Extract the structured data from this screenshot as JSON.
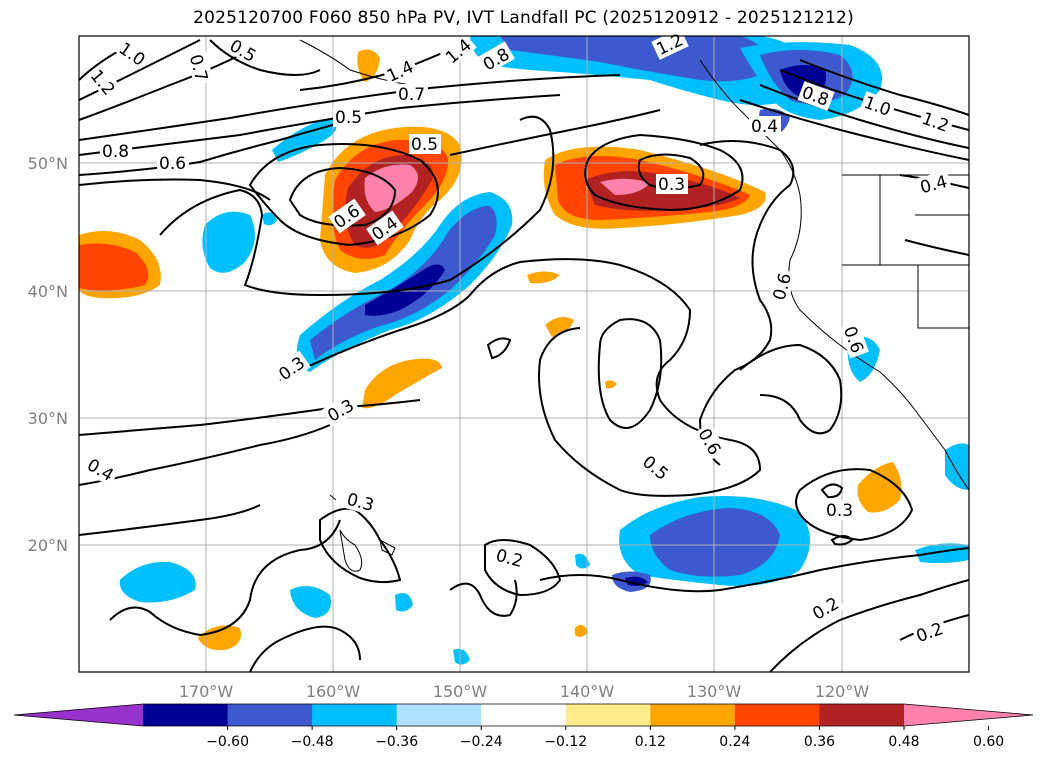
{
  "title": "2025120700 F060 850 hPa PV, IVT Landfall PC (2025120912 - 2025121212)",
  "map": {
    "lat_ticks": [
      "50°N",
      "40°N",
      "30°N",
      "20°N"
    ],
    "lon_ticks": [
      "170°W",
      "160°W",
      "150°W",
      "140°W",
      "130°W",
      "120°W"
    ],
    "contour_labels": [
      "1.0",
      "1.2",
      "0.7",
      "0.5",
      "1.4",
      "1.4",
      "0.8",
      "0.7",
      "0.5",
      "0.8",
      "0.6",
      "0.5",
      "0.6",
      "0.4",
      "0.3",
      "0.4",
      "0.4",
      "1.2",
      "1.0",
      "0.8",
      "1.2",
      "0.6",
      "0.6",
      "0.3",
      "0.3",
      "0.4",
      "0.3",
      "0.2",
      "0.6",
      "0.5",
      "0.3",
      "0.2",
      "0.2"
    ]
  },
  "colorbar": {
    "ticks": [
      "−0.60",
      "−0.48",
      "−0.36",
      "−0.24",
      "−0.12",
      "0.12",
      "0.24",
      "0.36",
      "0.48",
      "0.60"
    ],
    "colors": [
      "#9932cc",
      "#000096",
      "#3c5acd",
      "#00bfff",
      "#b0e2ff",
      "#ffffff",
      "#ffec8b",
      "#ffa500",
      "#ff4500",
      "#b22222",
      "#ff82ab"
    ]
  },
  "colors": {
    "grid": "#b0b0b0",
    "contour": "#000000",
    "neg_strong": "#000096",
    "neg_mid": "#3c5acd",
    "neg_weak": "#00bfff",
    "pos_weak": "#ffa500",
    "pos_mid": "#ff4500",
    "pos_strong": "#b22222",
    "pos_max": "#ff82ab"
  }
}
